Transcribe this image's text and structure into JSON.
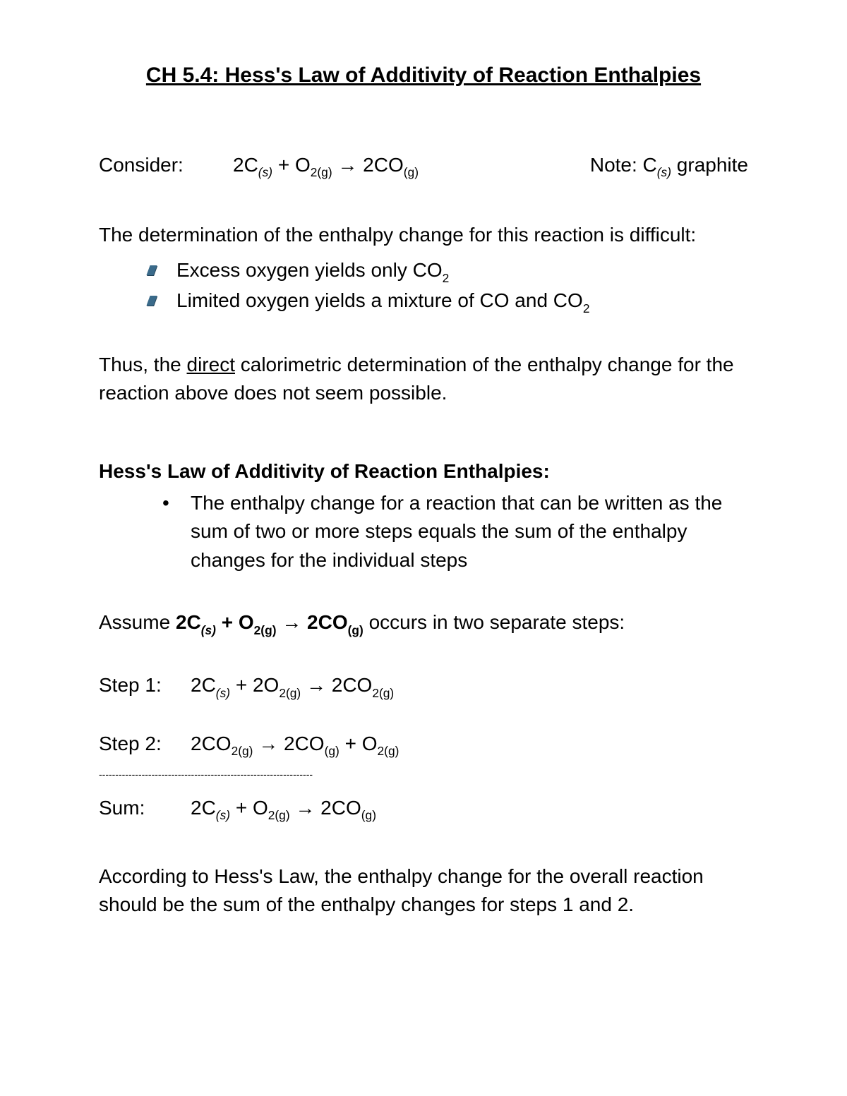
{
  "title": "CH 5.4:   Hess's Law of Additivity of Reaction Enthalpies",
  "consider": {
    "label": "Consider:",
    "equation_html": "2C<span class='subi'>(s)</span>  +  O<span class='sub'>2(g)</span>  →  2CO<span class='sub'>(g)</span>",
    "note_html": "Note:  C<span class='subi'>(s)</span> graphite"
  },
  "intro_para": "The determination of the enthalpy change for this reaction is difficult:",
  "difficulty_bullets": [
    "Excess oxygen yields only CO<span class='sub'>2</span>",
    "Limited oxygen yields a mixture of CO and CO<span class='sub'>2</span>"
  ],
  "thus_para_html": "Thus, the <span class='underline'>direct</span> calorimetric determination of the enthalpy change for the reaction above does not seem possible.",
  "hess_heading": "Hess's Law of Additivity of Reaction Enthalpies:",
  "hess_bullet": "The enthalpy change for a reaction that can be written as the sum of two or more steps equals the sum of the enthalpy changes for the individual steps",
  "assume_html": "Assume <span class='bold'>2C<span class='subi'>(s)</span>  +  O<span class='sub'>2(g)</span>  →  2CO<span class='sub'>(g)</span></span> occurs in two separate steps:",
  "step1": {
    "label": "Step 1:",
    "eq_html": "2C<span class='subi'>(s)</span>  +  2O<span class='sub'>2(g)</span>  →  2CO<span class='sub'>2(g)</span>"
  },
  "step2": {
    "label": "Step 2:",
    "eq_html": "2CO<span class='sub'>2(g)</span>  →  2CO<span class='sub'>(g)</span>  +  O<span class='sub'>2(g)</span>"
  },
  "rule_dashes": "-----------------------------------------------------------------",
  "sum": {
    "label": "Sum:",
    "eq_html": "2C<span class='subi'>(s)</span>  +  O<span class='sub'>2(g)</span>  →  2CO<span class='sub'>(g)</span>"
  },
  "closing_para": "According to Hess's Law, the enthalpy change for the overall reaction should be the sum of the enthalpy changes for steps 1 and 2."
}
